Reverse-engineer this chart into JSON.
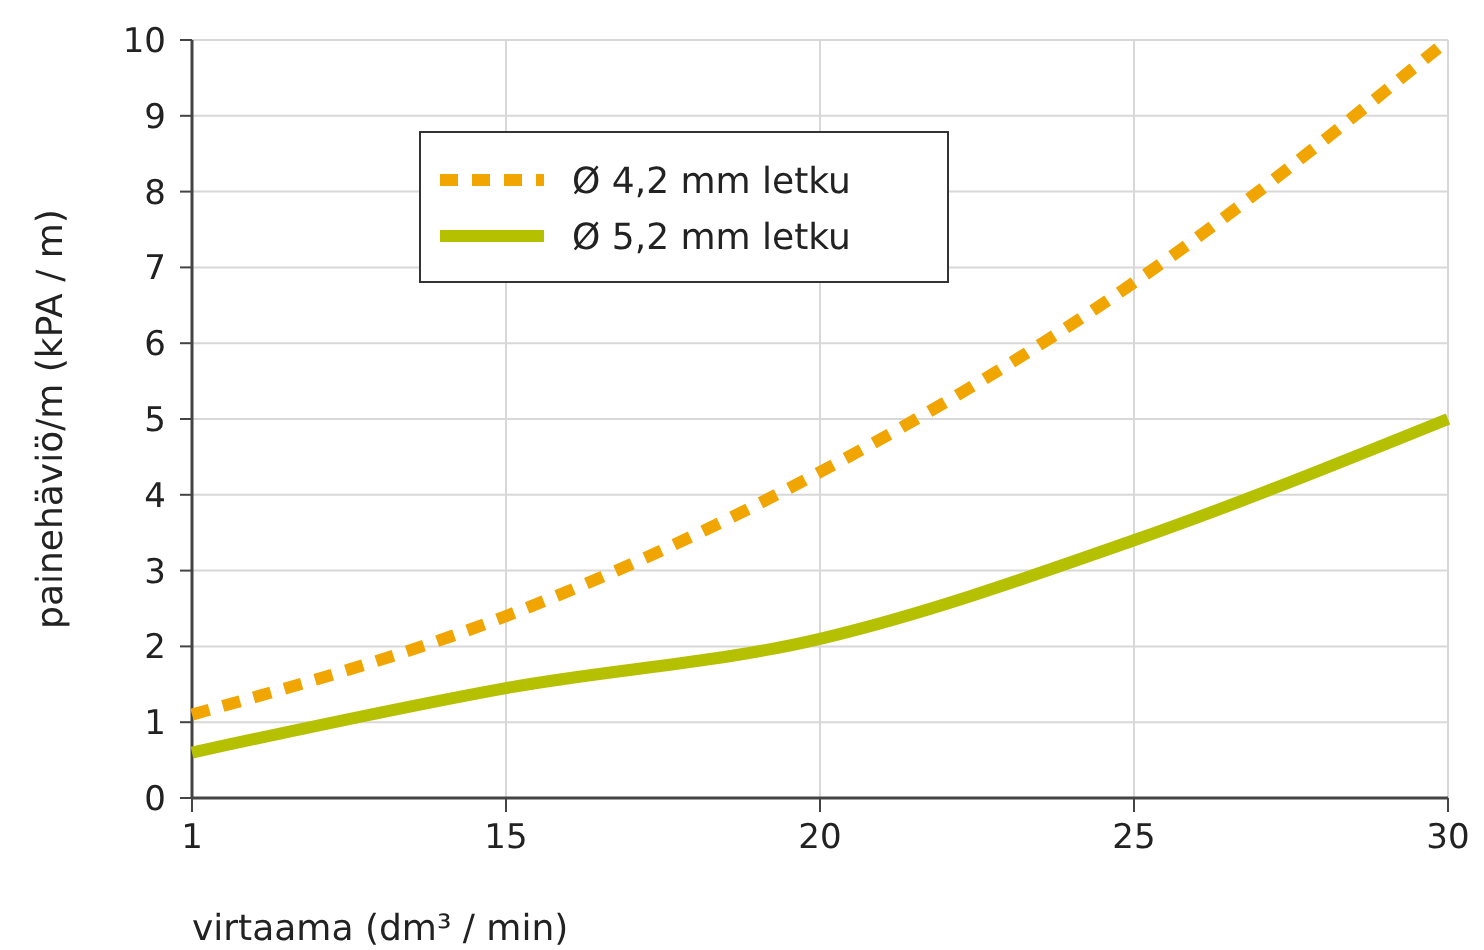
{
  "chart_data": {
    "type": "line",
    "xlabel": "virtaama (dm³ / min)",
    "ylabel": "painehäviö/m (kPA / m)",
    "categories": [
      "1",
      "15",
      "20",
      "25",
      "30"
    ],
    "ylim": [
      0,
      10
    ],
    "yticks": [
      0,
      1,
      2,
      3,
      4,
      5,
      6,
      7,
      8,
      9,
      10
    ],
    "grid": true,
    "legend": "top left",
    "series": [
      {
        "name": "Ø 4,2 mm letku",
        "color": "#f0a500",
        "line_style": "dashed",
        "values": [
          1.1,
          2.4,
          4.3,
          6.8,
          10
        ]
      },
      {
        "name": "Ø 5,2 mm letku",
        "color": "#b4c000",
        "line_style": "solid",
        "values": [
          0.6,
          1.45,
          2.1,
          3.4,
          5.0
        ]
      }
    ]
  }
}
